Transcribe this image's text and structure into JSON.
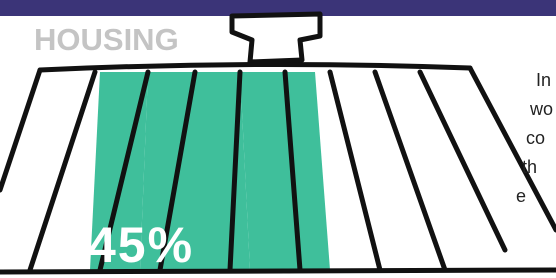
{
  "title": "HOUSING",
  "stat": "45%",
  "side_text": [
    "In",
    "wo",
    "co",
    "th",
    "e"
  ]
}
